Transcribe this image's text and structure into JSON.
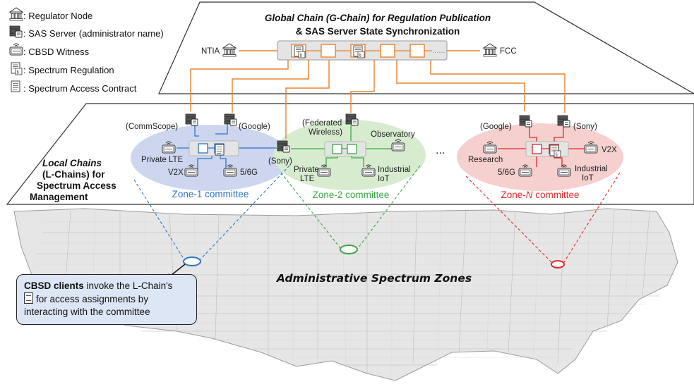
{
  "legend": {
    "items": [
      {
        "icon": "regulator-node-icon",
        "label": ": Regulator Node"
      },
      {
        "icon": "sas-server-icon",
        "label": ": SAS Server (administrator name)"
      },
      {
        "icon": "cbsd-witness-icon",
        "label": ": CBSD Witness"
      },
      {
        "icon": "spectrum-regulation-icon",
        "label": ": Spectrum Regulation"
      },
      {
        "icon": "spectrum-access-contract-icon",
        "label": ": Spectrum Access Contract"
      }
    ]
  },
  "global_chain": {
    "title_line1": "Global Chain (G-Chain) for Regulation Publication",
    "title_line2": "& SAS Server State Synchronization",
    "left_node": "NTIA",
    "right_node": "FCC",
    "color": "#e8822e"
  },
  "local_chains": {
    "title_line1": "Local Chains",
    "title_line2": "(L-Chains) for",
    "title_line3": "Spectrum Access",
    "title_line4": "Management",
    "ellipsis": "..."
  },
  "zones": [
    {
      "caption": "Zone-1 committee",
      "color": "#2e74c6",
      "fill": "#cdd6ee",
      "servers": [
        "(CommScope)",
        "(Google)",
        "(Sony)"
      ],
      "witnesses": [
        "Private LTE",
        "V2X",
        "5/6G"
      ]
    },
    {
      "caption": "Zone-2 committee",
      "color": "#3aa845",
      "fill": "#d7eccf",
      "servers": [
        "(Federated",
        "Wireless)"
      ],
      "witnesses": [
        "Observatory",
        "Private",
        "LTE",
        "Industrial",
        "IoT"
      ]
    },
    {
      "caption_prefix": "Zone-",
      "caption_italic": "N",
      "caption_suffix": " committee",
      "color": "#e02b2b",
      "fill": "#f6cfcf",
      "servers": [
        "(Google)",
        "(Sony)"
      ],
      "witnesses": [
        "Research",
        "5/6G",
        "V2X",
        "Industrial",
        "IoT"
      ]
    }
  ],
  "map": {
    "title": "Administrative Spectrum Zones"
  },
  "callout": {
    "bold": "CBSD clients",
    "text1": " invoke the L-Chain's",
    "text2": "for access assignments by",
    "text3": "interacting with the committee"
  }
}
